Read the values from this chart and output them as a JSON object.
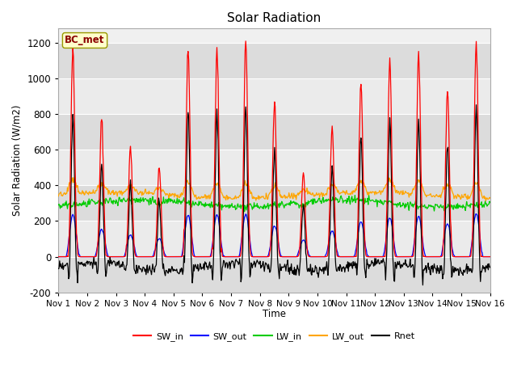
{
  "title": "Solar Radiation",
  "ylabel": "Solar Radiation (W/m2)",
  "xlabel": "Time",
  "ylim": [
    -200,
    1280
  ],
  "xlim": [
    0,
    15
  ],
  "station_label": "BC_met",
  "legend_entries": [
    "SW_in",
    "SW_out",
    "LW_in",
    "LW_out",
    "Rnet"
  ],
  "legend_colors": [
    "#ff0000",
    "#0000ff",
    "#00cc00",
    "#ffa500",
    "#000000"
  ],
  "xtick_labels": [
    "Nov 1",
    "Nov 2",
    "Nov 3",
    "Nov 4",
    "Nov 5",
    "Nov 6",
    "Nov 7",
    "Nov 8",
    "Nov 9",
    "Nov 10",
    "Nov 11",
    "Nov 12",
    "Nov 13",
    "Nov 14",
    "Nov 15",
    "Nov 16"
  ],
  "ytick_values": [
    -200,
    0,
    200,
    400,
    600,
    800,
    1000,
    1200
  ],
  "fig_facecolor": "#ffffff",
  "ax_facecolor": "#f0f0f0",
  "band_colors": [
    "#e8e8e8",
    "#f8f8f8"
  ],
  "n_days": 15,
  "seed": 42,
  "pts_per_day": 48
}
